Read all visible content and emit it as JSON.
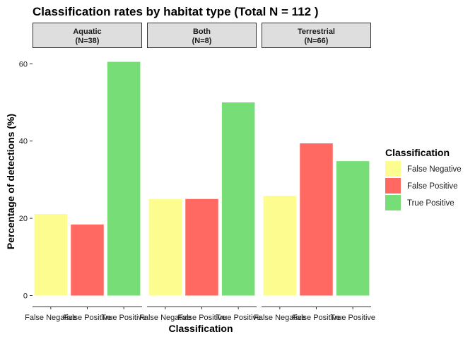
{
  "chart_data": {
    "type": "bar",
    "title": "Classification rates by habitat type (Total N = 112 )",
    "xlabel": "Classification",
    "ylabel": "Percentage of detections (%)",
    "ylim": [
      0,
      63
    ],
    "yticks": [
      0,
      20,
      40,
      60
    ],
    "grid": false,
    "legend_position": "right",
    "legend_title": "Classification",
    "categories": [
      "False Negative",
      "False Positive",
      "True Positive"
    ],
    "colors": {
      "False Negative": "#fcfc8f",
      "False Positive": "#ff6961",
      "True Positive": "#77dd77"
    },
    "facets": [
      {
        "label": "Aquatic",
        "n_label": "(N=38)",
        "values": [
          21.1,
          18.4,
          60.5
        ]
      },
      {
        "label": "Both",
        "n_label": "(N=8)",
        "values": [
          25.0,
          25.0,
          50.0
        ]
      },
      {
        "label": "Terrestrial",
        "n_label": "(N=66)",
        "values": [
          25.8,
          39.4,
          34.8
        ]
      }
    ]
  }
}
